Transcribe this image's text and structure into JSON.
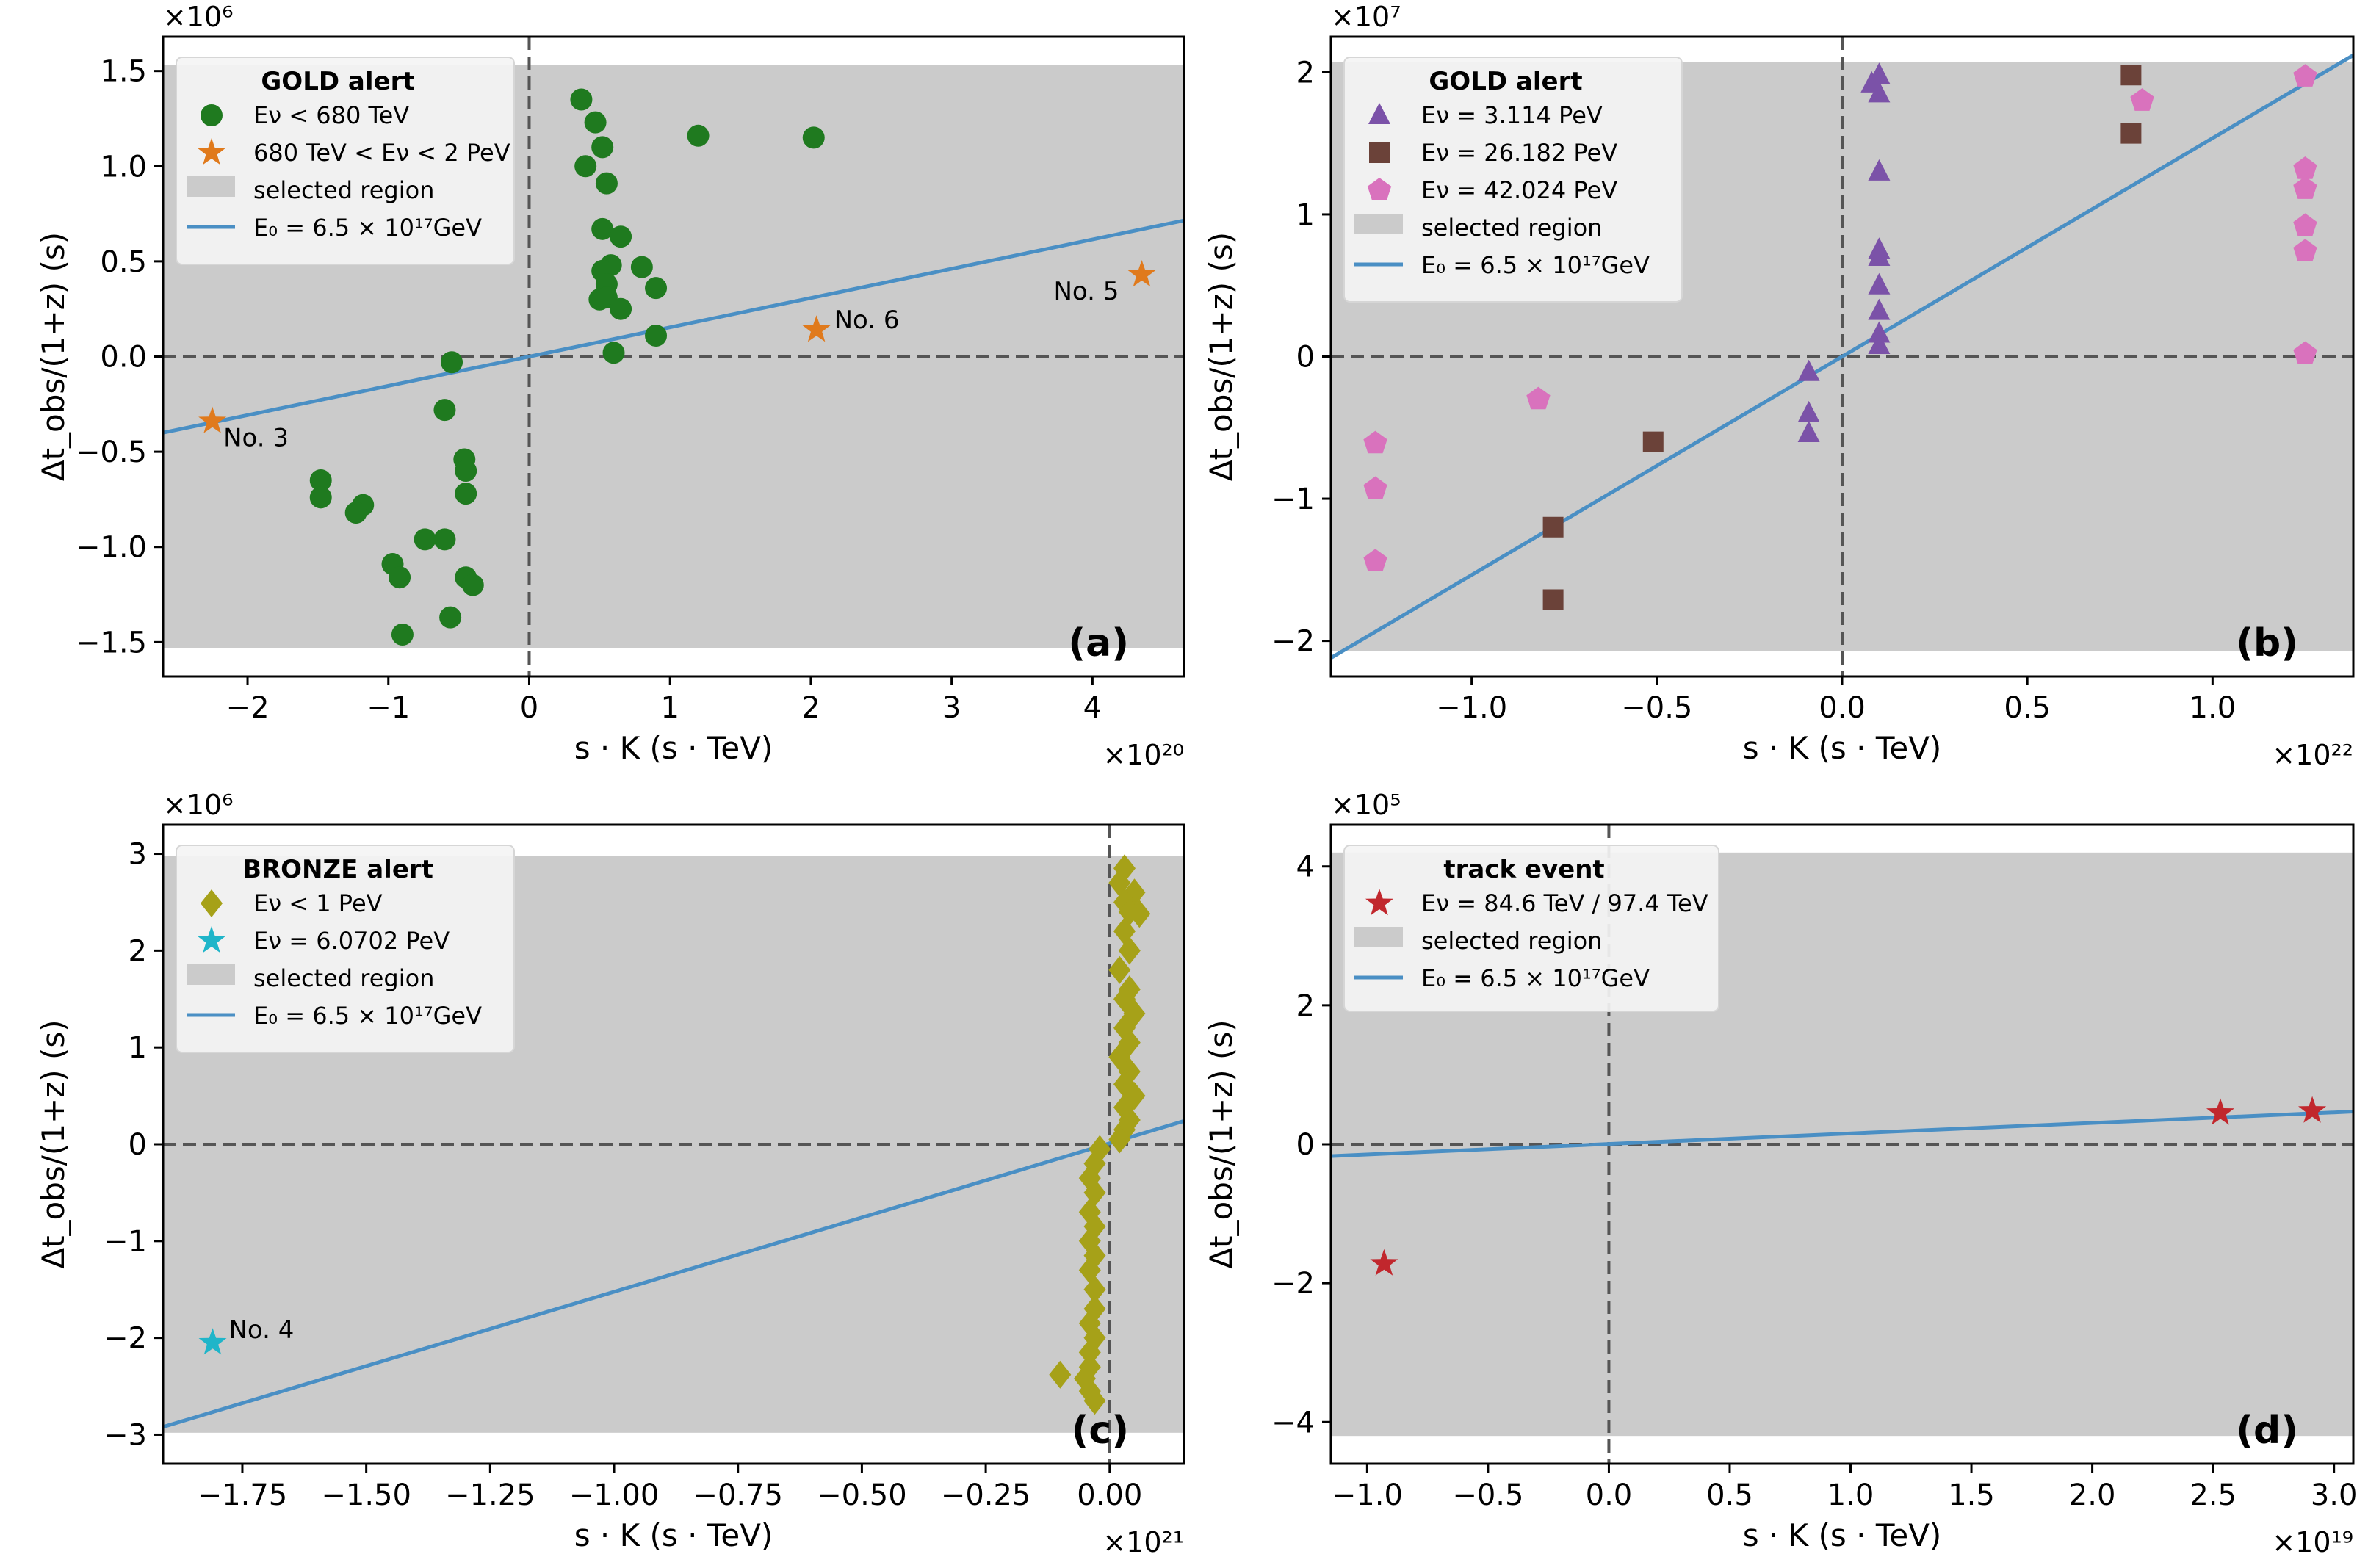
{
  "figure": {
    "xlabel": "s · K (s · TeV)",
    "ylabel": "Δt_obs/(1+z) (s)",
    "fit_label": "E₀ = 6.5 × 10¹⁷GeV",
    "region_label": "selected region",
    "colors": {
      "region": "#cbcbcb",
      "fit": "#4a8fc4",
      "dash": "#555555"
    }
  },
  "chart_data": [
    {
      "type": "scatter",
      "panel_label": "(a)",
      "legend_title": "GOLD alert",
      "x_multiplier": "×10²⁰",
      "y_multiplier": "×10⁶",
      "xlim": [
        -2.6,
        4.65
      ],
      "ylim": [
        -1.68,
        1.68
      ],
      "xticks": [
        -2,
        -1,
        0,
        1,
        2,
        3,
        4
      ],
      "xtick_labels": [
        "−2",
        "−1",
        "0",
        "1",
        "2",
        "3",
        "4"
      ],
      "yticks": [
        -1.5,
        -1.0,
        -0.5,
        0.0,
        0.5,
        1.0,
        1.5
      ],
      "ytick_labels": [
        "−1.5",
        "−1.0",
        "−0.5",
        "0.0",
        "0.5",
        "1.0",
        "1.5"
      ],
      "region": [
        -1.53,
        1.53
      ],
      "fit_line": {
        "x": [
          -2.6,
          4.65
        ],
        "y": [
          -0.4,
          0.715
        ]
      },
      "series": [
        {
          "name": "E_ν < 680 TeV",
          "legend": "Eν < 680 TeV",
          "marker": "circle",
          "color": "#1f7a1f",
          "points": [
            [
              0.37,
              1.35
            ],
            [
              0.47,
              1.23
            ],
            [
              0.52,
              1.1
            ],
            [
              0.4,
              1.0
            ],
            [
              0.55,
              0.91
            ],
            [
              1.2,
              1.16
            ],
            [
              2.02,
              1.15
            ],
            [
              0.52,
              0.67
            ],
            [
              0.65,
              0.63
            ],
            [
              0.58,
              0.48
            ],
            [
              0.8,
              0.47
            ],
            [
              0.52,
              0.45
            ],
            [
              0.9,
              0.36
            ],
            [
              0.55,
              0.38
            ],
            [
              0.5,
              0.3
            ],
            [
              0.55,
              0.31
            ],
            [
              0.65,
              0.25
            ],
            [
              0.9,
              0.11
            ],
            [
              0.6,
              0.02
            ],
            [
              -0.55,
              -0.03
            ],
            [
              -0.6,
              -0.28
            ],
            [
              -0.46,
              -0.54
            ],
            [
              -0.45,
              -0.6
            ],
            [
              -1.48,
              -0.65
            ],
            [
              -0.45,
              -0.72
            ],
            [
              -1.48,
              -0.74
            ],
            [
              -1.18,
              -0.78
            ],
            [
              -1.23,
              -0.82
            ],
            [
              -0.6,
              -0.96
            ],
            [
              -0.74,
              -0.96
            ],
            [
              -0.97,
              -1.09
            ],
            [
              -0.45,
              -1.16
            ],
            [
              -0.92,
              -1.16
            ],
            [
              -0.4,
              -1.2
            ],
            [
              -0.56,
              -1.37
            ],
            [
              -0.9,
              -1.46
            ]
          ]
        },
        {
          "name": "680 TeV < E_ν < 2 PeV",
          "legend": "680 TeV < Eν < 2 PeV",
          "marker": "star",
          "color": "#e07a1c",
          "points": [
            [
              -2.25,
              -0.34
            ],
            [
              2.04,
              0.14
            ],
            [
              4.35,
              0.43
            ]
          ]
        }
      ],
      "annotations": [
        {
          "text": "No. 3",
          "x": -2.25,
          "y": -0.34,
          "dx": 15,
          "dy": 34
        },
        {
          "text": "No. 6",
          "x": 2.04,
          "y": 0.14,
          "dx": 24,
          "dy": -2
        },
        {
          "text": "No. 5",
          "x": 4.35,
          "y": 0.43,
          "dx": -120,
          "dy": 34
        }
      ]
    },
    {
      "type": "scatter",
      "panel_label": "(b)",
      "legend_title": "GOLD alert",
      "x_multiplier": "×10²²",
      "y_multiplier": "×10⁷",
      "xlim": [
        -1.38,
        1.38
      ],
      "ylim": [
        -2.25,
        2.25
      ],
      "xticks": [
        -1.0,
        -0.5,
        0.0,
        0.5,
        1.0
      ],
      "xtick_labels": [
        "−1.0",
        "−0.5",
        "0.0",
        "0.5",
        "1.0"
      ],
      "yticks": [
        -2,
        -1,
        0,
        1,
        2
      ],
      "ytick_labels": [
        "−2",
        "−1",
        "0",
        "1",
        "2"
      ],
      "region": [
        -2.07,
        2.07
      ],
      "fit_line": {
        "x": [
          -1.38,
          1.38
        ],
        "y": [
          -2.12,
          2.12
        ]
      },
      "series": [
        {
          "name": "E_ν = 3.114 PeV",
          "legend": "Eν = 3.114 PeV",
          "marker": "triangle",
          "color": "#7b52a8",
          "points": [
            [
              0.08,
              1.92
            ],
            [
              0.1,
              1.98
            ],
            [
              0.1,
              1.85
            ],
            [
              0.1,
              1.3
            ],
            [
              0.1,
              0.75
            ],
            [
              0.1,
              0.7
            ],
            [
              0.1,
              0.5
            ],
            [
              0.1,
              0.32
            ],
            [
              0.1,
              0.16
            ],
            [
              0.1,
              0.08
            ],
            [
              -0.09,
              -0.11
            ],
            [
              -0.09,
              -0.4
            ],
            [
              -0.09,
              -0.54
            ]
          ]
        },
        {
          "name": "E_ν = 26.182 PeV",
          "legend": "Eν = 26.182 PeV",
          "marker": "square",
          "color": "#6b4239",
          "points": [
            [
              0.78,
              1.98
            ],
            [
              0.78,
              1.57
            ],
            [
              -0.51,
              -0.6
            ],
            [
              -0.78,
              -1.2
            ],
            [
              -0.78,
              -1.71
            ]
          ]
        },
        {
          "name": "E_ν = 42.024 PeV",
          "legend": "Eν = 42.024 PeV",
          "marker": "pentagon",
          "color": "#d972bd",
          "points": [
            [
              1.25,
              1.97
            ],
            [
              1.25,
              1.32
            ],
            [
              1.25,
              1.18
            ],
            [
              1.25,
              0.92
            ],
            [
              1.25,
              0.74
            ],
            [
              1.25,
              0.02
            ],
            [
              0.81,
              1.8
            ],
            [
              -0.82,
              -0.3
            ],
            [
              -1.26,
              -0.61
            ],
            [
              -1.26,
              -0.93
            ],
            [
              -1.26,
              -1.44
            ]
          ]
        }
      ],
      "annotations": []
    },
    {
      "type": "scatter",
      "panel_label": "(c)",
      "legend_title": "BRONZE alert",
      "x_multiplier": "×10²¹",
      "y_multiplier": "×10⁶",
      "xlim": [
        -1.91,
        0.15
      ],
      "ylim": [
        -3.3,
        3.3
      ],
      "xticks": [
        -1.75,
        -1.5,
        -1.25,
        -1.0,
        -0.75,
        -0.5,
        -0.25,
        0.0
      ],
      "xtick_labels": [
        "−1.75",
        "−1.50",
        "−1.25",
        "−1.00",
        "−0.75",
        "−0.50",
        "−0.25",
        "0.00"
      ],
      "yticks": [
        -3,
        -2,
        -1,
        0,
        1,
        2,
        3
      ],
      "ytick_labels": [
        "−3",
        "−2",
        "−1",
        "0",
        "1",
        "2",
        "3"
      ],
      "region": [
        -2.98,
        2.98
      ],
      "fit_line": {
        "x": [
          -1.91,
          0.15
        ],
        "y": [
          -2.92,
          0.24
        ]
      },
      "series": [
        {
          "name": "E_ν < 1 PeV",
          "legend": "Eν < 1 PeV",
          "marker": "diamond",
          "color": "#a6a118",
          "points": [
            [
              0.03,
              2.85
            ],
            [
              0.02,
              2.7
            ],
            [
              0.05,
              2.6
            ],
            [
              0.03,
              2.5
            ],
            [
              0.04,
              2.4
            ],
            [
              0.06,
              2.38
            ],
            [
              0.03,
              2.2
            ],
            [
              0.04,
              2.0
            ],
            [
              0.02,
              1.8
            ],
            [
              0.04,
              1.6
            ],
            [
              0.03,
              1.5
            ],
            [
              0.05,
              1.35
            ],
            [
              0.03,
              1.2
            ],
            [
              0.04,
              1.05
            ],
            [
              0.02,
              0.9
            ],
            [
              0.04,
              0.75
            ],
            [
              0.03,
              0.62
            ],
            [
              0.05,
              0.5
            ],
            [
              0.03,
              0.38
            ],
            [
              0.04,
              0.25
            ],
            [
              0.03,
              0.15
            ],
            [
              0.02,
              0.05
            ],
            [
              -0.02,
              -0.05
            ],
            [
              -0.03,
              -0.2
            ],
            [
              -0.04,
              -0.35
            ],
            [
              -0.03,
              -0.5
            ],
            [
              -0.04,
              -0.7
            ],
            [
              -0.03,
              -0.85
            ],
            [
              -0.04,
              -1.0
            ],
            [
              -0.03,
              -1.15
            ],
            [
              -0.04,
              -1.3
            ],
            [
              -0.03,
              -1.5
            ],
            [
              -0.03,
              -1.7
            ],
            [
              -0.04,
              -1.85
            ],
            [
              -0.03,
              -2.0
            ],
            [
              -0.04,
              -2.15
            ],
            [
              -0.04,
              -2.3
            ],
            [
              -0.1,
              -2.38
            ],
            [
              -0.05,
              -2.42
            ],
            [
              -0.04,
              -2.55
            ],
            [
              -0.03,
              -2.65
            ]
          ]
        },
        {
          "name": "E_ν = 6.0702 PeV",
          "legend": "Eν = 6.0702 PeV",
          "marker": "star",
          "color": "#1fb5c9",
          "points": [
            [
              -1.81,
              -2.05
            ]
          ]
        }
      ],
      "annotations": [
        {
          "text": "No. 4",
          "x": -1.81,
          "y": -2.05,
          "dx": 22,
          "dy": -6
        }
      ]
    },
    {
      "type": "scatter",
      "panel_label": "(d)",
      "legend_title": "track event",
      "x_multiplier": "×10¹⁹",
      "y_multiplier": "×10⁵",
      "xlim": [
        -1.15,
        3.08
      ],
      "ylim": [
        -4.6,
        4.6
      ],
      "xticks": [
        -1.0,
        -0.5,
        0.0,
        0.5,
        1.0,
        1.5,
        2.0,
        2.5,
        3.0
      ],
      "xtick_labels": [
        "−1.0",
        "−0.5",
        "0.0",
        "0.5",
        "1.0",
        "1.5",
        "2.0",
        "2.5",
        "3.0"
      ],
      "yticks": [
        -4,
        -2,
        0,
        2,
        4
      ],
      "ytick_labels": [
        "−4",
        "−2",
        "0",
        "2",
        "4"
      ],
      "region": [
        -4.2,
        4.2
      ],
      "fit_line": {
        "x": [
          -1.15,
          3.08
        ],
        "y": [
          -0.17,
          0.47
        ]
      },
      "series": [
        {
          "name": "E_ν = 84.6 TeV / 97.4 TeV",
          "legend": "Eν = 84.6 TeV / 97.4 TeV",
          "marker": "star",
          "color": "#c1272d",
          "points": [
            [
              -0.93,
              -1.72
            ],
            [
              2.53,
              0.45
            ],
            [
              2.91,
              0.48
            ]
          ]
        }
      ],
      "annotations": []
    }
  ]
}
